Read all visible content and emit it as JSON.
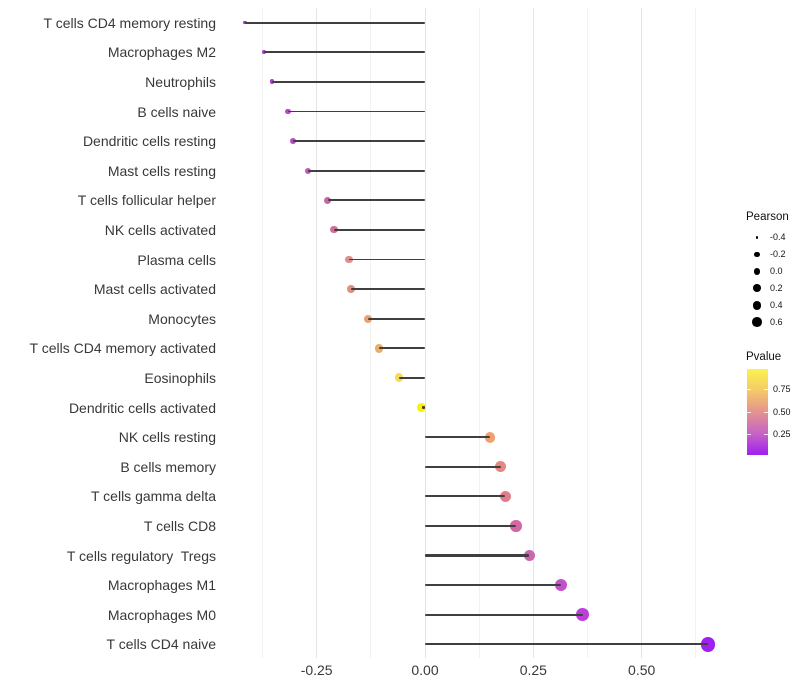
{
  "figure": {
    "background": "#ffffff"
  },
  "chart_data": {
    "type": "lollipop",
    "orientation": "horizontal",
    "title": "",
    "xlabel": "",
    "ylabel": "",
    "x_axis": {
      "tick_values": [
        -0.25,
        0.0,
        0.25,
        0.5
      ],
      "tick_labels": [
        "-0.25",
        "0.00",
        "0.25",
        "0.50"
      ],
      "minor_gridlines": [
        -0.375,
        -0.125,
        0.125,
        0.375,
        0.625
      ],
      "range": [
        -0.468,
        0.688
      ]
    },
    "grid": "vertical-only",
    "value_encoding": {
      "x_and_size": "Pearson",
      "color": "Pvalue"
    },
    "size_scale_domain": [
      -0.42,
      0.66
    ],
    "points": [
      {
        "label": "T cells CD4 memory resting",
        "pearson": -0.415,
        "color": "#A02CDE"
      },
      {
        "label": "Macrophages M2",
        "pearson": -0.372,
        "color": "#A936DA"
      },
      {
        "label": "Neutrophils",
        "pearson": -0.353,
        "color": "#AE3CD3"
      },
      {
        "label": "B cells naive",
        "pearson": -0.316,
        "color": "#B748C9"
      },
      {
        "label": "Dendritic cells resting",
        "pearson": -0.305,
        "color": "#B94BC6"
      },
      {
        "label": "Mast cells resting",
        "pearson": -0.27,
        "color": "#C058BA"
      },
      {
        "label": "T cells follicular helper",
        "pearson": -0.224,
        "color": "#C765A6"
      },
      {
        "label": "NK cells activated",
        "pearson": -0.21,
        "color": "#CE6F9C"
      },
      {
        "label": "Plasma cells",
        "pearson": -0.175,
        "color": "#DE8F8C"
      },
      {
        "label": "Mast cells activated",
        "pearson": -0.171,
        "color": "#DE9085"
      },
      {
        "label": "Monocytes",
        "pearson": -0.132,
        "color": "#E9A271"
      },
      {
        "label": "T cells CD4 memory activated",
        "pearson": -0.106,
        "color": "#ECAC6A"
      },
      {
        "label": "Eosinophils",
        "pearson": -0.06,
        "color": "#F6DC55"
      },
      {
        "label": "Dendritic cells activated",
        "pearson": -0.008,
        "color": "#FAF200"
      },
      {
        "label": "NK cells resting",
        "pearson": 0.15,
        "color": "#F0A070"
      },
      {
        "label": "B cells memory",
        "pearson": 0.175,
        "color": "#E68782"
      },
      {
        "label": "T cells gamma delta",
        "pearson": 0.185,
        "color": "#E07F8B"
      },
      {
        "label": "T cells CD8",
        "pearson": 0.21,
        "color": "#D269A5"
      },
      {
        "label": "T cells regulatory  Tregs",
        "pearson": 0.241,
        "color": "#CC64B0"
      },
      {
        "label": "Macrophages M1",
        "pearson": 0.314,
        "color": "#C351CB"
      },
      {
        "label": "Macrophages M0",
        "pearson": 0.364,
        "color": "#BA40D8"
      },
      {
        "label": "T cells CD4 naive",
        "pearson": 0.653,
        "color": "#A020F0"
      }
    ]
  },
  "legend": {
    "size": {
      "title": "Pearson",
      "entries": [
        {
          "label": "-0.4",
          "value": -0.4
        },
        {
          "label": "-0.2",
          "value": -0.2
        },
        {
          "label": "0.0",
          "value": 0.0
        },
        {
          "label": "0.2",
          "value": 0.2
        },
        {
          "label": "0.4",
          "value": 0.4
        },
        {
          "label": "0.6",
          "value": 0.6
        }
      ]
    },
    "color": {
      "title": "Pvalue",
      "tick_labels": [
        "0.75",
        "0.50",
        "0.25"
      ],
      "tick_values": [
        0.75,
        0.5,
        0.25
      ],
      "bar_value_range": [
        0.02,
        0.97
      ],
      "gradient_bottom_to_top": [
        "#A01FF0",
        "#C763C4",
        "#E4938F",
        "#F4C968",
        "#FAF44E"
      ]
    }
  }
}
